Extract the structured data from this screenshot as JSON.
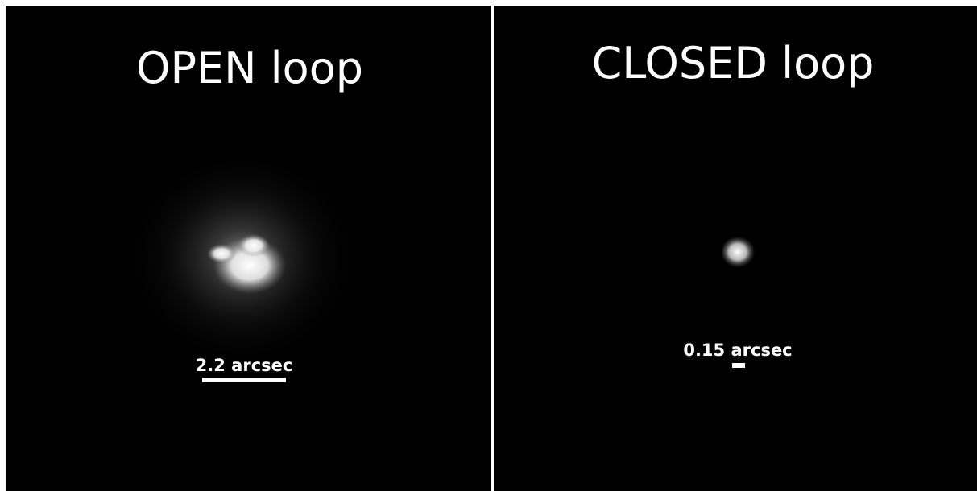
{
  "panels": [
    {
      "title": "OPEN loop",
      "scale_label": "2.2 arcsec"
    },
    {
      "title": "CLOSED loop",
      "scale_label": "0.15 arcsec"
    }
  ]
}
